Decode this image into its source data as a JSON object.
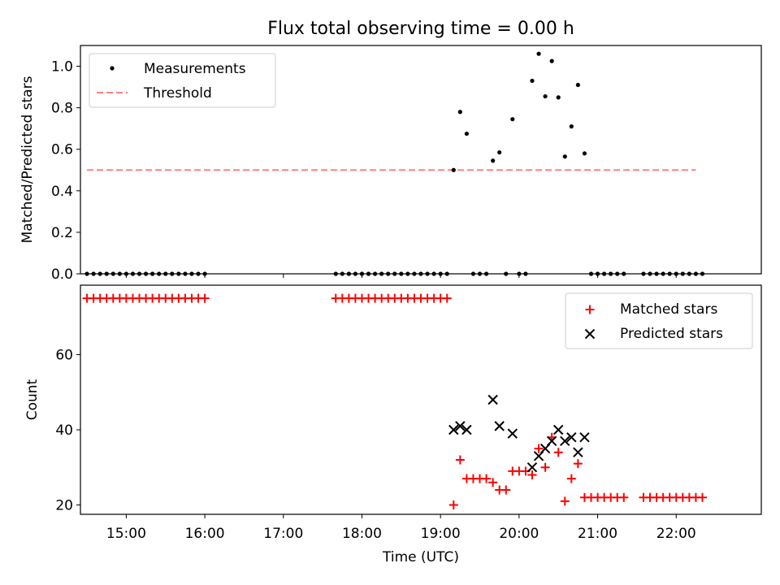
{
  "chart_data": [
    {
      "type": "scatter",
      "title": "Flux total observing time = 0.00 h",
      "xlabel": "",
      "ylabel": "Matched/Predicted stars",
      "xlim": [
        "14:25",
        "23:05"
      ],
      "ylim": [
        0,
        1.1
      ],
      "yticks": [
        "0.0",
        "0.2",
        "0.4",
        "0.6",
        "0.8",
        "1.0"
      ],
      "legend_position": "top-left",
      "series": [
        {
          "name": "Measurements",
          "color": "#000000",
          "marker": "dot",
          "points": [
            [
              "14:30",
              0
            ],
            [
              "14:35",
              0
            ],
            [
              "14:40",
              0
            ],
            [
              "14:45",
              0
            ],
            [
              "14:50",
              0
            ],
            [
              "14:55",
              0
            ],
            [
              "15:00",
              0
            ],
            [
              "15:05",
              0
            ],
            [
              "15:10",
              0
            ],
            [
              "15:15",
              0
            ],
            [
              "15:20",
              0
            ],
            [
              "15:25",
              0
            ],
            [
              "15:30",
              0
            ],
            [
              "15:35",
              0
            ],
            [
              "15:40",
              0
            ],
            [
              "15:45",
              0
            ],
            [
              "15:50",
              0
            ],
            [
              "15:55",
              0
            ],
            [
              "16:00",
              0
            ],
            [
              "17:40",
              0
            ],
            [
              "17:45",
              0
            ],
            [
              "17:50",
              0
            ],
            [
              "17:55",
              0
            ],
            [
              "18:00",
              0
            ],
            [
              "18:05",
              0
            ],
            [
              "18:10",
              0
            ],
            [
              "18:15",
              0
            ],
            [
              "18:20",
              0
            ],
            [
              "18:25",
              0
            ],
            [
              "18:30",
              0
            ],
            [
              "18:35",
              0
            ],
            [
              "18:40",
              0
            ],
            [
              "18:45",
              0
            ],
            [
              "18:50",
              0
            ],
            [
              "18:55",
              0
            ],
            [
              "19:00",
              0
            ],
            [
              "19:05",
              0
            ],
            [
              "19:10",
              0.5
            ],
            [
              "19:15",
              0.78
            ],
            [
              "19:20",
              0.675
            ],
            [
              "19:25",
              0
            ],
            [
              "19:30",
              0
            ],
            [
              "19:35",
              0
            ],
            [
              "19:40",
              0.545
            ],
            [
              "19:45",
              0.585
            ],
            [
              "19:50",
              0
            ],
            [
              "19:55",
              0.745
            ],
            [
              "20:00",
              0
            ],
            [
              "20:05",
              0
            ],
            [
              "20:10",
              0.93
            ],
            [
              "20:15",
              1.06
            ],
            [
              "20:20",
              0.855
            ],
            [
              "20:25",
              1.025
            ],
            [
              "20:30",
              0.85
            ],
            [
              "20:35",
              0.565
            ],
            [
              "20:40",
              0.71
            ],
            [
              "20:45",
              0.91
            ],
            [
              "20:50",
              0.58
            ],
            [
              "20:55",
              0
            ],
            [
              "21:00",
              0
            ],
            [
              "21:05",
              0
            ],
            [
              "21:10",
              0
            ],
            [
              "21:15",
              0
            ],
            [
              "21:20",
              0
            ],
            [
              "21:35",
              0
            ],
            [
              "21:40",
              0
            ],
            [
              "21:45",
              0
            ],
            [
              "21:50",
              0
            ],
            [
              "21:55",
              0
            ],
            [
              "22:00",
              0
            ],
            [
              "22:05",
              0
            ],
            [
              "22:10",
              0
            ],
            [
              "22:15",
              0
            ],
            [
              "22:20",
              0
            ]
          ]
        },
        {
          "name": "Threshold",
          "color": "#ff8080",
          "style": "dashed",
          "points": [
            [
              "14:30",
              0.5
            ],
            [
              "22:15",
              0.5
            ]
          ]
        }
      ]
    },
    {
      "type": "scatter",
      "title": "",
      "xlabel": "Time (UTC)",
      "ylabel": "Count",
      "xlim": [
        "14:25",
        "23:05"
      ],
      "ylim": [
        17.5,
        78.5
      ],
      "xticks": [
        "15:00",
        "16:00",
        "17:00",
        "18:00",
        "19:00",
        "20:00",
        "21:00",
        "22:00"
      ],
      "yticks": [
        "20",
        "40",
        "60"
      ],
      "legend_position": "top-right",
      "series": [
        {
          "name": "Matched stars",
          "color": "#ff0000",
          "marker": "plus",
          "points": [
            [
              "14:30",
              75
            ],
            [
              "14:35",
              75
            ],
            [
              "14:40",
              75
            ],
            [
              "14:45",
              75
            ],
            [
              "14:50",
              75
            ],
            [
              "14:55",
              75
            ],
            [
              "15:00",
              75
            ],
            [
              "15:05",
              75
            ],
            [
              "15:10",
              75
            ],
            [
              "15:15",
              75
            ],
            [
              "15:20",
              75
            ],
            [
              "15:25",
              75
            ],
            [
              "15:30",
              75
            ],
            [
              "15:35",
              75
            ],
            [
              "15:40",
              75
            ],
            [
              "15:45",
              75
            ],
            [
              "15:50",
              75
            ],
            [
              "15:55",
              75
            ],
            [
              "16:00",
              75
            ],
            [
              "17:40",
              75
            ],
            [
              "17:45",
              75
            ],
            [
              "17:50",
              75
            ],
            [
              "17:55",
              75
            ],
            [
              "18:00",
              75
            ],
            [
              "18:05",
              75
            ],
            [
              "18:10",
              75
            ],
            [
              "18:15",
              75
            ],
            [
              "18:20",
              75
            ],
            [
              "18:25",
              75
            ],
            [
              "18:30",
              75
            ],
            [
              "18:35",
              75
            ],
            [
              "18:40",
              75
            ],
            [
              "18:45",
              75
            ],
            [
              "18:50",
              75
            ],
            [
              "18:55",
              75
            ],
            [
              "19:00",
              75
            ],
            [
              "19:05",
              75
            ],
            [
              "19:10",
              20
            ],
            [
              "19:15",
              32
            ],
            [
              "19:20",
              27
            ],
            [
              "19:25",
              27
            ],
            [
              "19:30",
              27
            ],
            [
              "19:35",
              27
            ],
            [
              "19:40",
              26
            ],
            [
              "19:45",
              24
            ],
            [
              "19:50",
              24
            ],
            [
              "19:55",
              29
            ],
            [
              "20:00",
              29
            ],
            [
              "20:05",
              29
            ],
            [
              "20:10",
              28
            ],
            [
              "20:15",
              35
            ],
            [
              "20:20",
              30
            ],
            [
              "20:25",
              38
            ],
            [
              "20:30",
              34
            ],
            [
              "20:35",
              21
            ],
            [
              "20:40",
              27
            ],
            [
              "20:45",
              31
            ],
            [
              "20:50",
              22
            ],
            [
              "20:55",
              22
            ],
            [
              "21:00",
              22
            ],
            [
              "21:05",
              22
            ],
            [
              "21:10",
              22
            ],
            [
              "21:15",
              22
            ],
            [
              "21:20",
              22
            ],
            [
              "21:35",
              22
            ],
            [
              "21:40",
              22
            ],
            [
              "21:45",
              22
            ],
            [
              "21:50",
              22
            ],
            [
              "21:55",
              22
            ],
            [
              "22:00",
              22
            ],
            [
              "22:05",
              22
            ],
            [
              "22:10",
              22
            ],
            [
              "22:15",
              22
            ],
            [
              "22:20",
              22
            ]
          ]
        },
        {
          "name": "Predicted stars",
          "color": "#000000",
          "marker": "x",
          "points": [
            [
              "19:10",
              40
            ],
            [
              "19:15",
              41
            ],
            [
              "19:20",
              40
            ],
            [
              "19:40",
              48
            ],
            [
              "19:45",
              41
            ],
            [
              "19:55",
              39
            ],
            [
              "20:10",
              30
            ],
            [
              "20:15",
              33
            ],
            [
              "20:20",
              35
            ],
            [
              "20:25",
              37
            ],
            [
              "20:30",
              40
            ],
            [
              "20:35",
              37
            ],
            [
              "20:40",
              38
            ],
            [
              "20:45",
              34
            ],
            [
              "20:50",
              38
            ]
          ]
        }
      ]
    }
  ]
}
